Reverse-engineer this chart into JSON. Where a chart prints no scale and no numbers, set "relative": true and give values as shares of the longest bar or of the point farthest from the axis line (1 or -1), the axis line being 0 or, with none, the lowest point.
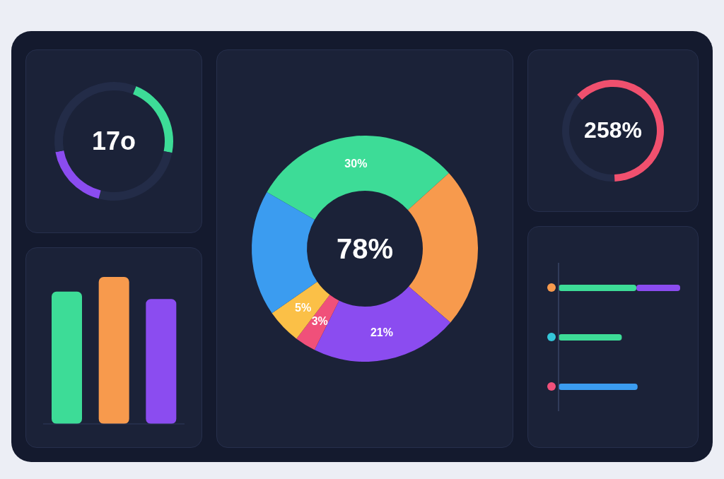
{
  "chart_data": [
    {
      "type": "donut",
      "categories": [
        null,
        null,
        null,
        null,
        null,
        null
      ],
      "values": [
        30,
        23,
        21,
        3,
        5,
        18
      ],
      "colors": [
        "#3ddc97",
        "#f79a4d",
        "#8b4cf0",
        "#f0507a",
        "#fbc047",
        "#3b9cf0"
      ],
      "value_labels": [
        "30%",
        null,
        "21%",
        "3%",
        "5%",
        null
      ],
      "annotations": [
        "78%"
      ]
    },
    {
      "type": "donut",
      "categories": [
        null,
        null
      ],
      "values": [
        62,
        38
      ],
      "colors": [
        "#f0506e",
        "#232c48"
      ],
      "annotations": [
        "258%"
      ]
    },
    {
      "type": "donut",
      "categories": [
        null,
        null,
        null,
        null
      ],
      "values": [
        22,
        26,
        18,
        34
      ],
      "colors": [
        "#3ddc97",
        "#232c48",
        "#8b4cf0",
        "#232c48"
      ],
      "annotations": [
        "17o"
      ]
    },
    {
      "type": "bar",
      "categories": [
        null,
        null,
        null
      ],
      "values": [
        0.9,
        1,
        0.85
      ],
      "colors": [
        "#3ddc97",
        "#f79a4d",
        "#8b4cf0"
      ],
      "relative": true
    },
    {
      "type": "bar",
      "orientation": "horizontal",
      "stacked": true,
      "relative": true,
      "categories": [
        null,
        null,
        null
      ],
      "series": [
        {
          "color": "#3ddc97",
          "values": [
            0.64,
            0.52,
            null
          ]
        },
        {
          "color": "#8b4cf0",
          "values": [
            0.36,
            null,
            null
          ]
        },
        {
          "color": "#3b9cf0",
          "values": [
            null,
            null,
            0.65
          ]
        }
      ]
    }
  ]
}
